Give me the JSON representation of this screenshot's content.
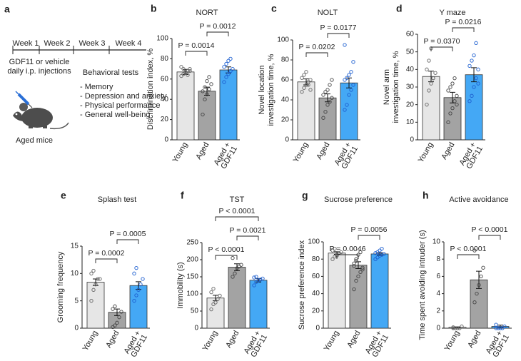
{
  "timeline": {
    "label": "a",
    "weeks": [
      "Week 1",
      "Week 2",
      "Week 3",
      "Week 4"
    ],
    "treatment": [
      "GDF11 or vehicle",
      "daily i.p. injections"
    ],
    "tests_title": "Behavioral tests",
    "tests": [
      "- Memory",
      "- Depression and anxiety",
      "- Physical performance",
      "- General well-being"
    ],
    "animal": "Aged mice"
  },
  "chart_data": [
    {
      "type": "bar",
      "label": "b",
      "title": "NORT",
      "ylabel": [
        "Discrimination index, %"
      ],
      "categories": [
        "Young",
        "Aged",
        "Aged + GDF11"
      ],
      "colors": [
        "#e6e6e6",
        "#a3a3a3",
        "#44a8f5"
      ],
      "point_colors": [
        "#666666",
        "#444444",
        "#1d5fd0"
      ],
      "values": [
        67,
        48,
        69
      ],
      "errors": [
        2.5,
        4,
        3
      ],
      "points": [
        [
          63,
          65,
          67,
          68,
          70,
          72,
          70,
          66,
          64,
          68
        ],
        [
          25,
          40,
          45,
          50,
          55,
          48,
          52,
          58,
          62
        ],
        [
          57,
          62,
          65,
          68,
          70,
          72,
          75,
          78,
          80
        ]
      ],
      "ylim": [
        0,
        100
      ],
      "yticks": [
        0,
        20,
        40,
        60,
        80,
        100
      ],
      "comparisons": [
        {
          "pair": [
            "Young",
            "Aged"
          ],
          "label": "P = 0.0014"
        },
        {
          "pair": [
            "Aged",
            "Aged + GDF11"
          ],
          "label": "P = 0.0012"
        }
      ]
    },
    {
      "type": "bar",
      "label": "c",
      "title": "NOLT",
      "ylabel": [
        "Novel location",
        "investigation time, %"
      ],
      "categories": [
        "Young",
        "Aged",
        "Aged + GDF11"
      ],
      "colors": [
        "#e6e6e6",
        "#a3a3a3",
        "#44a8f5"
      ],
      "point_colors": [
        "#666666",
        "#444444",
        "#1d5fd0"
      ],
      "values": [
        58,
        42,
        57
      ],
      "errors": [
        3,
        4,
        5
      ],
      "points": [
        [
          48,
          52,
          55,
          58,
          60,
          62,
          65,
          68,
          55,
          50
        ],
        [
          22,
          28,
          35,
          38,
          42,
          45,
          48,
          50,
          55,
          60
        ],
        [
          30,
          35,
          45,
          50,
          55,
          60,
          62,
          65,
          68,
          78,
          95
        ]
      ],
      "ylim": [
        0,
        100
      ],
      "yticks": [
        0,
        20,
        40,
        60,
        80,
        100
      ],
      "comparisons": [
        {
          "pair": [
            "Young",
            "Aged"
          ],
          "label": "P = 0.0202"
        },
        {
          "pair": [
            "Aged",
            "Aged + GDF11"
          ],
          "label": "P = 0.0177"
        }
      ]
    },
    {
      "type": "bar",
      "label": "d",
      "title": "Y maze",
      "ylabel": [
        "Novel arm",
        "investigation time, %"
      ],
      "categories": [
        "Young",
        "Aged",
        "Aged + GDF11"
      ],
      "colors": [
        "#e6e6e6",
        "#a3a3a3",
        "#44a8f5"
      ],
      "point_colors": [
        "#666666",
        "#444444",
        "#1d5fd0"
      ],
      "values": [
        36,
        24,
        37
      ],
      "errors": [
        3,
        3,
        4
      ],
      "points": [
        [
          20,
          28,
          32,
          35,
          38,
          40,
          45,
          52,
          35
        ],
        [
          10,
          15,
          18,
          22,
          25,
          28,
          30,
          32,
          35,
          20
        ],
        [
          22,
          25,
          30,
          35,
          40,
          42,
          45,
          48,
          55,
          32
        ]
      ],
      "ylim": [
        0,
        60
      ],
      "yticks": [
        0,
        10,
        20,
        30,
        40,
        50,
        60
      ],
      "comparisons": [
        {
          "pair": [
            "Young",
            "Aged"
          ],
          "label": "P = 0.0370"
        },
        {
          "pair": [
            "Aged",
            "Aged + GDF11"
          ],
          "label": "P = 0.0216"
        }
      ]
    },
    {
      "type": "bar",
      "label": "e",
      "title": "Splash test",
      "ylabel": [
        "Grooming frequency"
      ],
      "categories": [
        "Young",
        "Aged",
        "Aged + GDF11"
      ],
      "colors": [
        "#e6e6e6",
        "#a3a3a3",
        "#44a8f5"
      ],
      "point_colors": [
        "#666666",
        "#444444",
        "#1d5fd0"
      ],
      "values": [
        8.4,
        2.9,
        7.8
      ],
      "errors": [
        0.6,
        0.6,
        0.7
      ],
      "points": [
        [
          5,
          7,
          8,
          9,
          9,
          10,
          10.5
        ],
        [
          0.2,
          0.5,
          1,
          2,
          3,
          3.5,
          4
        ],
        [
          5,
          6,
          7,
          8,
          9,
          10,
          11
        ]
      ],
      "ylim": [
        0,
        15
      ],
      "yticks": [
        0,
        5,
        10,
        15
      ],
      "comparisons": [
        {
          "pair": [
            "Young",
            "Aged"
          ],
          "label": "P = 0.0002"
        },
        {
          "pair": [
            "Aged",
            "Aged + GDF11"
          ],
          "label": "P = 0.0005"
        }
      ]
    },
    {
      "type": "bar",
      "label": "f",
      "title": "TST",
      "ylabel": [
        "Immobility (s)"
      ],
      "categories": [
        "Young",
        "Aged",
        "Aged + GDF11"
      ],
      "colors": [
        "#e6e6e6",
        "#a3a3a3",
        "#44a8f5"
      ],
      "point_colors": [
        "#666666",
        "#444444",
        "#1d5fd0"
      ],
      "values": [
        88,
        178,
        140
      ],
      "errors": [
        8,
        10,
        5
      ],
      "points": [
        [
          55,
          70,
          75,
          85,
          95,
          105,
          115
        ],
        [
          150,
          160,
          175,
          180,
          185,
          205
        ],
        [
          125,
          135,
          140,
          142,
          145,
          148,
          150
        ]
      ],
      "ylim": [
        0,
        250
      ],
      "yticks": [
        0,
        50,
        100,
        150,
        200,
        250
      ],
      "comparisons": [
        {
          "pair": [
            "Young",
            "Aged"
          ],
          "label": "P < 0.0001"
        },
        {
          "pair": [
            "Aged",
            "Aged + GDF11"
          ],
          "label": "P = 0.0021"
        },
        {
          "pair": [
            "Young",
            "Aged + GDF11"
          ],
          "label": "P < 0.0001"
        }
      ]
    },
    {
      "type": "bar",
      "label": "g",
      "title": "Sucrose preference",
      "ylabel": [
        "Sucrose preference index"
      ],
      "categories": [
        "Young",
        "Aged",
        "Aged + GDF11"
      ],
      "colors": [
        "#e6e6e6",
        "#a3a3a3",
        "#44a8f5"
      ],
      "point_colors": [
        "#666666",
        "#444444",
        "#1d5fd0"
      ],
      "values": [
        87,
        73,
        86
      ],
      "errors": [
        1.5,
        4,
        1.5
      ],
      "points": [
        [
          80,
          83,
          85,
          87,
          88,
          90,
          92,
          84
        ],
        [
          45,
          55,
          60,
          65,
          70,
          75,
          80,
          85,
          88,
          68,
          72,
          78
        ],
        [
          80,
          82,
          84,
          85,
          86,
          87,
          88,
          90,
          92
        ]
      ],
      "ylim": [
        0,
        100
      ],
      "yticks": [
        0,
        20,
        40,
        60,
        80,
        100
      ],
      "comparisons": [
        {
          "pair": [
            "Young",
            "Aged"
          ],
          "label": "P = 0.0046"
        },
        {
          "pair": [
            "Aged",
            "Aged + GDF11"
          ],
          "label": "P = 0.0056"
        }
      ]
    },
    {
      "type": "bar",
      "label": "h",
      "title": "Active avoidance",
      "ylabel": [
        "Time spent avoiding intruder (s)"
      ],
      "categories": [
        "Young",
        "Aged",
        "Aged + GDF11"
      ],
      "colors": [
        "#e6e6e6",
        "#a3a3a3",
        "#44a8f5"
      ],
      "point_colors": [
        "#666666",
        "#444444",
        "#1d5fd0"
      ],
      "values": [
        0.1,
        5.6,
        0.2
      ],
      "errors": [
        0.05,
        1,
        0.15
      ],
      "points": [
        [
          0,
          0,
          0,
          0,
          0.2,
          0.1
        ],
        [
          3,
          4,
          5,
          6,
          7,
          9
        ],
        [
          0,
          0,
          0,
          0,
          0.2,
          0.4
        ]
      ],
      "ylim": [
        0,
        10
      ],
      "yticks": [
        0,
        2,
        4,
        6,
        8,
        10
      ],
      "comparisons": [
        {
          "pair": [
            "Young",
            "Aged"
          ],
          "label": "P < 0.0001"
        },
        {
          "pair": [
            "Aged",
            "Aged + GDF11"
          ],
          "label": "P < 0.0001"
        }
      ]
    }
  ]
}
